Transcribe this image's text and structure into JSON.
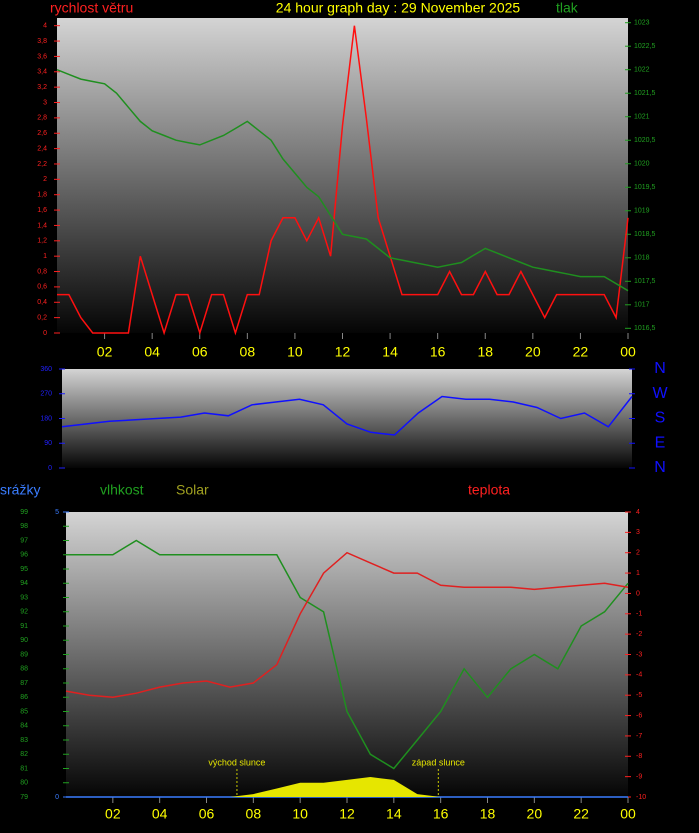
{
  "chart_data": [
    {
      "type": "line",
      "title": "24 hour graph day : 29 November 2025",
      "x": [
        0,
        0.5,
        1,
        1.5,
        2,
        2.5,
        3,
        3.5,
        4,
        4.5,
        5,
        5.5,
        6,
        6.5,
        7,
        7.5,
        8,
        8.5,
        9,
        9.5,
        10,
        10.5,
        11,
        11.5,
        12,
        12.5,
        13,
        13.5,
        14,
        14.5,
        15,
        15.5,
        16,
        16.5,
        17,
        17.5,
        18,
        18.5,
        19,
        19.5,
        20,
        20.5,
        21,
        21.5,
        22,
        22.5,
        23,
        23.5,
        24
      ],
      "series": [
        {
          "name": "rychlost větru",
          "color": "#ff1010",
          "axis": "y",
          "values": [
            0.5,
            0.5,
            0.2,
            0,
            0,
            0,
            0,
            1.0,
            0.5,
            0,
            0.5,
            0.5,
            0,
            0.5,
            0.5,
            0,
            0.5,
            0.5,
            1.2,
            1.5,
            1.5,
            1.2,
            1.5,
            1.0,
            2.7,
            4.0,
            2.8,
            1.5,
            1.0,
            0.5,
            0.5,
            0.5,
            0.5,
            0.8,
            0.5,
            0.5,
            0.8,
            0.5,
            0.5,
            0.8,
            0.5,
            0.2,
            0.5,
            0.5,
            0.5,
            0.5,
            0.5,
            0.2,
            1.5
          ]
        },
        {
          "name": "tlak",
          "color": "#1f8f1f",
          "axis": "y2",
          "values": [
            1022,
            1021.9,
            1021.8,
            1021.75,
            1021.7,
            1021.5,
            1021.2,
            1020.9,
            1020.7,
            1020.6,
            1020.5,
            1020.45,
            1020.4,
            1020.5,
            1020.6,
            1020.75,
            1020.9,
            1020.7,
            1020.5,
            1020.1,
            1019.8,
            1019.5,
            1019.3,
            1018.9,
            1018.5,
            1018.45,
            1018.4,
            1018.2,
            1018,
            1017.95,
            1017.9,
            1017.85,
            1017.8,
            1017.85,
            1017.9,
            1018.05,
            1018.2,
            1018.1,
            1018,
            1017.9,
            1017.8,
            1017.75,
            1017.7,
            1017.65,
            1017.6,
            1017.6,
            1017.6,
            1017.45,
            1017.3
          ]
        }
      ],
      "xlim": [
        0,
        24
      ],
      "xticks": [
        {
          "value": 2,
          "label": "02"
        },
        {
          "value": 4,
          "label": "04"
        },
        {
          "value": 6,
          "label": "06"
        },
        {
          "value": 8,
          "label": "08"
        },
        10,
        12,
        14,
        16,
        18,
        20,
        22,
        {
          "value": 24,
          "label": "00"
        }
      ],
      "ylim": [
        0,
        4.1
      ],
      "ycolor": "#ff2020",
      "yticks": [
        0,
        {
          "value": 0.2,
          "label": "0,2"
        },
        {
          "value": 0.4,
          "label": "0,4"
        },
        {
          "value": 0.6,
          "label": "0,6"
        },
        {
          "value": 0.8,
          "label": "0,8"
        },
        1,
        {
          "value": 1.2,
          "label": "1,2"
        },
        {
          "value": 1.4,
          "label": "1,4"
        },
        {
          "value": 1.6,
          "label": "1,6"
        },
        {
          "value": 1.8,
          "label": "1,8"
        },
        2,
        {
          "value": 2.2,
          "label": "2,2"
        },
        {
          "value": 2.4,
          "label": "2,4"
        },
        {
          "value": 2.6,
          "label": "2,6"
        },
        {
          "value": 2.8,
          "label": "2,8"
        },
        3,
        {
          "value": 3.2,
          "label": "3,2"
        },
        {
          "value": 3.4,
          "label": "3,4"
        },
        {
          "value": 3.6,
          "label": "3,6"
        },
        {
          "value": 3.8,
          "label": "3,8"
        },
        4
      ],
      "y2lim": [
        1016.4,
        1023.1
      ],
      "y2color": "#20a020",
      "y2ticks": [
        {
          "value": 1016.5,
          "label": "1016,5"
        },
        1017,
        {
          "value": 1017.5,
          "label": "1017,5"
        },
        1018,
        {
          "value": 1018.5,
          "label": "1018,5"
        },
        1019,
        {
          "value": 1019.5,
          "label": "1019,5"
        },
        1020,
        {
          "value": 1020.5,
          "label": "1020,5"
        },
        1021,
        {
          "value": 1021.5,
          "label": "1021,5"
        },
        1022,
        {
          "value": 1022.5,
          "label": "1022,5"
        },
        1023
      ]
    },
    {
      "type": "line",
      "x": [
        0,
        1,
        2,
        3,
        4,
        5,
        6,
        7,
        8,
        9,
        10,
        11,
        12,
        13,
        14,
        15,
        16,
        17,
        18,
        19,
        20,
        21,
        22,
        23,
        24
      ],
      "series": [
        {
          "color": "#1010ff",
          "axis": "y",
          "values": [
            150,
            160,
            170,
            175,
            180,
            185,
            200,
            190,
            230,
            240,
            250,
            230,
            160,
            130,
            120,
            200,
            260,
            250,
            250,
            240,
            220,
            180,
            200,
            150,
            260
          ]
        }
      ],
      "xlim": [
        0,
        24
      ],
      "ylim": [
        0,
        360
      ],
      "ycolor": "#2020ff",
      "yticks": [
        0,
        90,
        180,
        270,
        360
      ],
      "y2lim": [
        0,
        360
      ],
      "y2color": "#1010ff",
      "y2ticks": [
        {
          "value": 360,
          "label": "N"
        },
        {
          "value": 270,
          "label": "W"
        },
        {
          "value": 180,
          "label": "S"
        },
        {
          "value": 90,
          "label": "E"
        },
        {
          "value": 0,
          "label": "N"
        }
      ]
    },
    {
      "type": "line",
      "x": [
        0,
        1,
        2,
        3,
        4,
        5,
        6,
        7,
        8,
        9,
        10,
        11,
        12,
        13,
        14,
        15,
        16,
        17,
        18,
        19,
        20,
        21,
        22,
        23,
        24
      ],
      "series": [
        {
          "name": "srážky",
          "color": "#3a7dff",
          "axis": "y3",
          "values": [
            0,
            0,
            0,
            0,
            0,
            0,
            0,
            0,
            0,
            0,
            0,
            0,
            0,
            0,
            0,
            0,
            0,
            0,
            0,
            0,
            0,
            0,
            0,
            0,
            0
          ]
        },
        {
          "name": "vlhkost",
          "color": "#1f8f1f",
          "axis": "y",
          "values": [
            96,
            96,
            96,
            97,
            96,
            96,
            96,
            96,
            96,
            96,
            93,
            92,
            85,
            82,
            81,
            83,
            85,
            88,
            86,
            88,
            89,
            88,
            91,
            92,
            94
          ]
        },
        {
          "name": "Solar",
          "color": "#e6e600",
          "axis": "y3",
          "kind": "area",
          "values": [
            0,
            0,
            0,
            0,
            0,
            0,
            0,
            0,
            0.05,
            0.15,
            0.25,
            0.25,
            0.3,
            0.35,
            0.3,
            0.05,
            0,
            0,
            0,
            0,
            0,
            0,
            0,
            0,
            0
          ]
        },
        {
          "name": "teplota",
          "color": "#e02020",
          "axis": "y2",
          "values": [
            -4.8,
            -5,
            -5.1,
            -4.9,
            -4.6,
            -4.4,
            -4.3,
            -4.6,
            -4.4,
            -3.5,
            -1,
            1,
            2,
            1.5,
            1,
            1,
            0.4,
            0.3,
            0.3,
            0.3,
            0.2,
            0.3,
            0.4,
            0.5,
            0.3
          ]
        }
      ],
      "xlim": [
        0,
        24
      ],
      "xticks": [
        {
          "value": 2,
          "label": "02"
        },
        {
          "value": 4,
          "label": "04"
        },
        {
          "value": 6,
          "label": "06"
        },
        {
          "value": 8,
          "label": "08"
        },
        10,
        12,
        14,
        16,
        18,
        20,
        22,
        {
          "value": 24,
          "label": "00"
        }
      ],
      "ylim": [
        79,
        99
      ],
      "ycolor": "#20a020",
      "yticks": [
        79,
        80,
        81,
        82,
        83,
        84,
        85,
        86,
        87,
        88,
        89,
        90,
        91,
        92,
        93,
        94,
        95,
        96,
        97,
        98,
        99
      ],
      "y2lim": [
        -10,
        4
      ],
      "y2color": "#ff2020",
      "y2ticks": [
        -10,
        -9,
        -8,
        -7,
        -6,
        -5,
        -4,
        -3,
        -2,
        -1,
        0,
        1,
        2,
        3,
        4
      ],
      "y3lim": [
        0,
        5
      ],
      "y3color": "#3a7dff",
      "y3ticks": [
        0,
        5
      ],
      "annotations": [
        {
          "text": "východ slunce",
          "x": 7.3
        },
        {
          "text": "západ slunce",
          "x": 15.9
        }
      ]
    }
  ]
}
